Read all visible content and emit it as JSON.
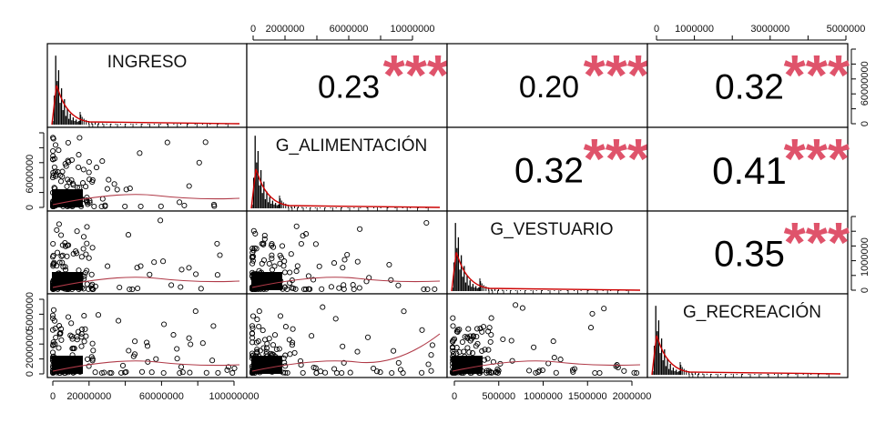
{
  "chart_data": {
    "type": "scatter_matrix",
    "title": "",
    "variables": [
      "INGRESO",
      "G_ALIMENTACIÓN",
      "G_VESTUARIO",
      "G_RECREACIÓN"
    ],
    "diagonal": "histogram with density curve",
    "lower_panels": "scatter plot with loess smoother",
    "upper_panels": "Pearson correlation coefficient with significance stars",
    "correlations": [
      {
        "row": "INGRESO",
        "col": "G_ALIMENTACIÓN",
        "value": "0.23",
        "stars": "***"
      },
      {
        "row": "INGRESO",
        "col": "G_VESTUARIO",
        "value": "0.20",
        "stars": "***"
      },
      {
        "row": "INGRESO",
        "col": "G_RECREACIÓN",
        "value": "0.32",
        "stars": "***"
      },
      {
        "row": "G_ALIMENTACIÓN",
        "col": "G_VESTUARIO",
        "value": "0.32",
        "stars": "***"
      },
      {
        "row": "G_ALIMENTACIÓN",
        "col": "G_RECREACIÓN",
        "value": "0.41",
        "stars": "***"
      },
      {
        "row": "G_VESTUARIO",
        "col": "G_RECREACIÓN",
        "value": "0.35",
        "stars": "***"
      }
    ],
    "axes": {
      "top": [
        {
          "variable": "G_ALIMENTACIÓN",
          "ticks": [
            "0",
            "2000000",
            "6000000",
            "10000000"
          ]
        },
        {
          "variable": "G_RECREACIÓN",
          "ticks": [
            "0",
            "1000000",
            "3000000",
            "5000000"
          ]
        }
      ],
      "bottom": [
        {
          "variable": "INGRESO",
          "ticks": [
            "0",
            "20000000",
            "60000000",
            "100000000"
          ]
        },
        {
          "variable": "G_VESTUARIO",
          "ticks": [
            "0",
            "500000",
            "1000000",
            "1500000",
            "2000000"
          ]
        }
      ],
      "left": [
        {
          "variable": "G_ALIMENTACIÓN",
          "ticks": [
            "0",
            "6000000"
          ]
        },
        {
          "variable": "G_RECREACIÓN",
          "ticks": [
            "0",
            "2000000",
            "5000000"
          ]
        }
      ],
      "right": [
        {
          "variable": "INGRESO",
          "ticks": [
            "0",
            "60000000"
          ]
        },
        {
          "variable": "G_VESTUARIO",
          "ticks": [
            "0",
            "1000000"
          ]
        }
      ]
    },
    "colors": {
      "stars": "#DF536B",
      "density": "#CC0000",
      "smoother": "#B03A48",
      "points": "#000000",
      "frame": "#000000"
    }
  }
}
